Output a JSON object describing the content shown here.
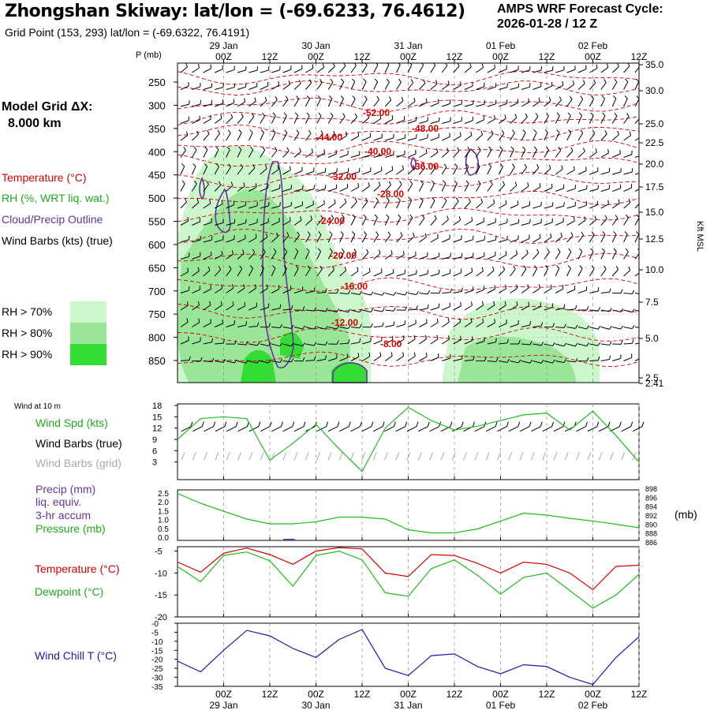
{
  "header": {
    "title": "Zhongshan Skiway:  lat/lon = (-69.6233, 76.4612)",
    "grid_point": "Grid Point (153, 293) lat/lon = (-69.6322, 76.4191)",
    "cycle_title": "AMPS WRF Forecast Cycle:",
    "cycle_date": "2026-01-28 / 12  Z"
  },
  "left_panel": {
    "model_grid": "Model Grid ΔX:",
    "model_grid_value": "8.000 km",
    "legend_temperature": "Temperature (°C)",
    "legend_rh": "RH (%, WRT liq. wat.)",
    "legend_cloud": "Cloud/Precip Outline",
    "legend_wind": "Wind Barbs (kts) (true)",
    "rh_70": "RH > 70%",
    "rh_80": "RH > 80%",
    "rh_90": "RH > 90%",
    "wind_at_10m": "Wind at 10 m",
    "wind_spd": "Wind Spd (kts)",
    "wind_barbs_true": "Wind Barbs (true)",
    "wind_barbs_grid": "Wind Barbs (grid)",
    "precip": "Precip (mm)",
    "liq_equiv": "liq. equiv.",
    "accum": "3-hr accum",
    "pressure": "Pressure (mb)",
    "mb_unit": "(mb)",
    "temperature": "Temperature (°C)",
    "dewpoint": "Dewpoint (°C)",
    "wind_chill": "Wind Chill T (°C)",
    "p_label": "P (mb)",
    "kft_label": "Kft MSL"
  },
  "colors": {
    "temperature": "#d40000",
    "rh_70": "#ccf7cc",
    "rh_80": "#99e699",
    "rh_90": "#33dd33",
    "cloud": "#663399",
    "wind_spd": "#22bb22",
    "dewpoint": "#22bb22",
    "wind_chill": "#1a1aaa",
    "grid_barbs": "#aaaaaa"
  },
  "chart_data": {
    "time_axis": {
      "hour_labels": [
        "00Z",
        "12Z",
        "00Z",
        "12Z",
        "00Z",
        "12Z",
        "00Z",
        "12Z",
        "00Z",
        "12Z"
      ],
      "date_labels": [
        "29 Jan",
        "30 Jan",
        "31 Jan",
        "01 Feb",
        "02 Feb"
      ],
      "hours": [
        12,
        24,
        36,
        48,
        60,
        72,
        84,
        96,
        108,
        120
      ]
    },
    "cross_section": {
      "type": "heatmap",
      "pressure_ticks": [
        "250",
        "300",
        "350",
        "400",
        "450",
        "500",
        "550",
        "600",
        "650",
        "700",
        "750",
        "800",
        "850"
      ],
      "height_ticks": [
        "35.0",
        "30.0",
        "25.0",
        "22.5",
        "20.0",
        "17.5",
        "15.0",
        "12.5",
        "10.0",
        "7.5",
        "5.0",
        "2.5",
        "2.41"
      ],
      "temperature_contours": [
        "-52.00",
        "-48.00",
        "-44.00",
        "-40.00",
        "-36.00",
        "-32.00",
        "-28.00",
        "-24.00",
        "-20.00",
        "-16.00",
        "-12.00",
        "-8.00"
      ]
    },
    "wind_10m": {
      "type": "line",
      "ylim": [
        0,
        18
      ],
      "yticks": [
        "18",
        "15",
        "12",
        "9",
        "6",
        "3"
      ],
      "hours": [
        0,
        6,
        12,
        18,
        24,
        30,
        36,
        42,
        48,
        54,
        60,
        66,
        72,
        78,
        84,
        90,
        96,
        102,
        108,
        114,
        120
      ],
      "values": [
        9,
        14.5,
        15,
        14.5,
        3.5,
        8,
        13,
        6.5,
        0.5,
        12,
        17.5,
        14,
        11.5,
        12.5,
        14,
        15.5,
        16,
        11.5,
        16.5,
        10,
        3
      ]
    },
    "pressure_precip": {
      "type": "line",
      "precip_ticks": [
        "2.5",
        "2.0",
        "1.5",
        "1.0",
        "0.5",
        "0.0"
      ],
      "pressure_ticks": [
        "898",
        "896",
        "894",
        "892",
        "890",
        "888",
        "886"
      ],
      "pressure_range": [
        886,
        898
      ],
      "hours": [
        0,
        6,
        12,
        18,
        24,
        30,
        36,
        42,
        48,
        54,
        60,
        66,
        72,
        78,
        84,
        90,
        96,
        102,
        108,
        114,
        120
      ],
      "pressure": [
        897.5,
        895,
        893,
        891,
        889.8,
        889.8,
        890.3,
        891.5,
        891.5,
        891,
        888.3,
        887.5,
        887.5,
        888.5,
        890.5,
        892.5,
        892,
        891.2,
        890.5,
        889.7,
        888.8
      ]
    },
    "temp_dewpoint": {
      "type": "line",
      "ylim": [
        -20,
        -4
      ],
      "yticks": [
        "-5",
        "-10",
        "-15",
        "-20"
      ],
      "hours": [
        0,
        6,
        12,
        18,
        24,
        30,
        36,
        42,
        48,
        54,
        60,
        66,
        72,
        78,
        84,
        90,
        96,
        102,
        108,
        114,
        120
      ],
      "series": [
        {
          "name": "Temperature",
          "values": [
            -7.5,
            -9.8,
            -5.5,
            -4.3,
            -5.8,
            -8,
            -5,
            -4.2,
            -4.5,
            -10,
            -10.8,
            -5.8,
            -6,
            -7.8,
            -10,
            -7.5,
            -8,
            -10,
            -13.8,
            -8.5,
            -8.2
          ]
        },
        {
          "name": "Dewpoint",
          "values": [
            -8.5,
            -12,
            -6,
            -5.2,
            -7.2,
            -13,
            -6,
            -5,
            -7,
            -14.5,
            -15.3,
            -9,
            -7,
            -10.5,
            -14.8,
            -11,
            -10,
            -14,
            -18,
            -15,
            -10.3
          ]
        }
      ]
    },
    "wind_chill": {
      "type": "line",
      "ylim": [
        -35,
        0
      ],
      "yticks": [
        "-0",
        "-5",
        "-10",
        "-15",
        "-20",
        "-25",
        "-30",
        "-35"
      ],
      "hours": [
        0,
        6,
        12,
        18,
        24,
        30,
        36,
        42,
        48,
        54,
        60,
        66,
        72,
        78,
        84,
        90,
        96,
        102,
        108,
        114,
        120
      ],
      "values": [
        -21,
        -27,
        -15,
        -4,
        -7,
        -14,
        -19,
        -9,
        -3.5,
        -25,
        -29,
        -18,
        -17,
        -24,
        -28,
        -23,
        -24,
        -30,
        -34,
        -19,
        -7.5
      ]
    }
  }
}
